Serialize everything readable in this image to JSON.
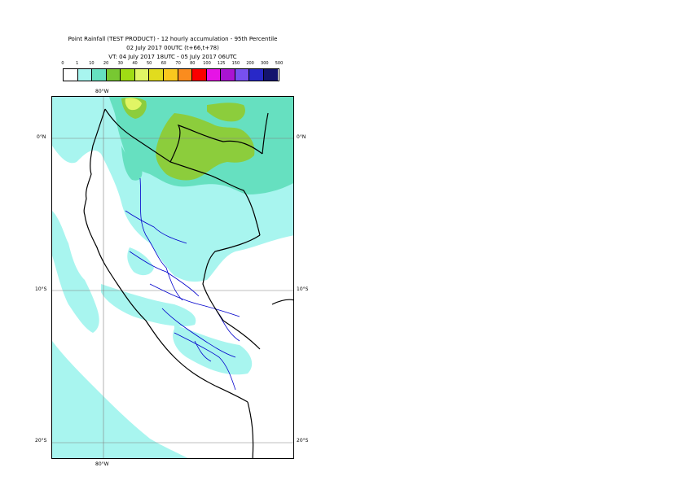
{
  "title": {
    "line1": "Point Rainfall (TEST PRODUCT) - 12 hourly accumulation - 95th Percentile",
    "line2": "02 July 2017 00UTC (t+66,t+78)",
    "line3": "VT: 04 July 2017 18UTC - 05 July 2017 06UTC"
  },
  "legend": {
    "labels": [
      "0",
      "1",
      "10",
      "20",
      "30",
      "40",
      "50",
      "60",
      "70",
      "80",
      "100",
      "125",
      "150",
      "200",
      "300",
      "500"
    ],
    "colors": [
      "#ffffff",
      "#a8f5ef",
      "#66e0c0",
      "#78c832",
      "#a0dc14",
      "#e1f565",
      "#e1dc1e",
      "#fac81e",
      "#fa8c1e",
      "#fa0000",
      "#e614e6",
      "#aa14d2",
      "#7850f0",
      "#2828c8",
      "#14146e"
    ]
  },
  "map": {
    "lon_labels": {
      "top": "80°W",
      "bottom": "80°W"
    },
    "lat_labels": [
      "0°N",
      "10°S",
      "20°S"
    ],
    "layer_colors": {
      "light": "#a8f5ef",
      "medium": "#66e0c0",
      "green": "#8ccd3c",
      "yellow": "#e1f565",
      "coast": "#000000",
      "border": "#0000cc",
      "grid": "#808080"
    }
  }
}
